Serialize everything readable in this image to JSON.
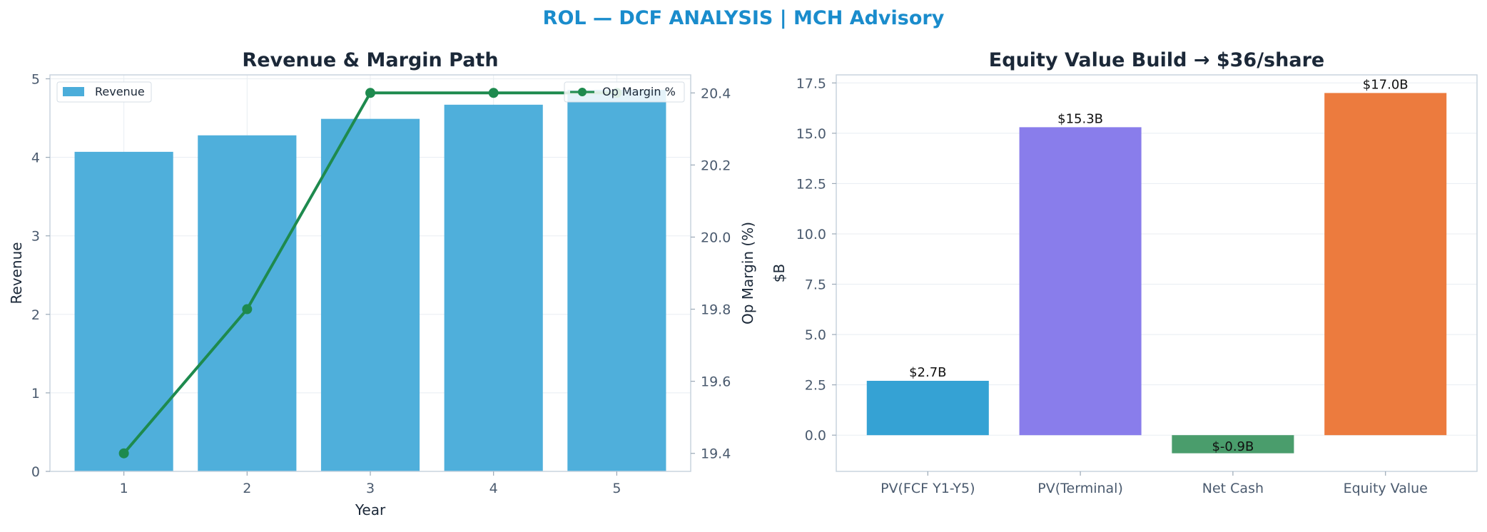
{
  "suptitle": "ROL — DCF ANALYSIS | MCH Advisory",
  "chart_data": [
    {
      "type": "bar",
      "title": "Revenue & Margin Path",
      "xlabel": "Year",
      "ylabel": "Revenue",
      "y2label": "Op Margin (%)",
      "categories": [
        "1",
        "2",
        "3",
        "4",
        "5"
      ],
      "ylim": [
        0,
        5.05
      ],
      "yticks": [
        "0",
        "1",
        "2",
        "3",
        "4",
        "5"
      ],
      "y2lim": [
        19.35,
        20.45
      ],
      "y2ticks": [
        "19.4",
        "19.6",
        "19.8",
        "20.0",
        "20.2",
        "20.4"
      ],
      "grid": true,
      "series": [
        {
          "name": "Revenue",
          "kind": "bar",
          "color": "#4badda",
          "values": [
            4.07,
            4.28,
            4.49,
            4.67,
            4.86
          ],
          "legend": "top-left"
        },
        {
          "name": "Op Margin %",
          "kind": "line",
          "axis": "right",
          "color": "#1e8a4e",
          "values": [
            19.4,
            19.8,
            20.4,
            20.4,
            20.4
          ],
          "legend": "top-right"
        }
      ]
    },
    {
      "type": "bar",
      "title": "Equity Value Build → $36/share",
      "xlabel": "",
      "ylabel": "$B",
      "categories": [
        "PV(FCF Y1-Y5)",
        "PV(Terminal)",
        "Net Cash",
        "Equity Value"
      ],
      "values": [
        2.7,
        15.3,
        -0.9,
        17.0
      ],
      "data_labels": [
        "$2.7B",
        "$15.3B",
        "$-0.9B",
        "$17.0B"
      ],
      "colors": [
        "#35a2d4",
        "#897deb",
        "#4a9d6c",
        "#ec7b3e"
      ],
      "ylim": [
        -1.8,
        17.9
      ],
      "yticks": [
        "0.0",
        "2.5",
        "5.0",
        "7.5",
        "10.0",
        "12.5",
        "15.0",
        "17.5"
      ],
      "grid": true
    }
  ]
}
